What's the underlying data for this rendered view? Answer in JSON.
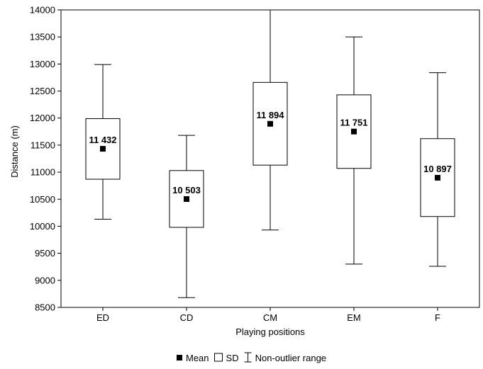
{
  "chart_data": {
    "type": "boxplot",
    "title": "",
    "xlabel": "Playing positions",
    "ylabel": "Distance (m)",
    "ylim": [
      8500,
      14000
    ],
    "y_ticks": [
      8500,
      9000,
      9500,
      10000,
      10500,
      11000,
      11500,
      12000,
      12500,
      13000,
      13500,
      14000
    ],
    "y_tick_labels": [
      "8500",
      "9000",
      "9500",
      "10000",
      "10500",
      "11000",
      "11500",
      "12000",
      "12500",
      "13000",
      "13500",
      "14000"
    ],
    "grid": false,
    "legend_position": "bottom",
    "legend": [
      {
        "symbol": "mean-square",
        "label": "Mean"
      },
      {
        "symbol": "box",
        "label": "SD"
      },
      {
        "symbol": "whisker",
        "label": "Non-outlier range"
      }
    ],
    "categories": [
      "ED",
      "CD",
      "CM",
      "EM",
      "F"
    ],
    "groups": [
      {
        "category": "ED",
        "mean": 11432,
        "mean_label": "11 432",
        "sd_low": 10870,
        "sd_high": 11990,
        "min": 10130,
        "max": 12990
      },
      {
        "category": "CD",
        "mean": 10503,
        "mean_label": "10 503",
        "sd_low": 9980,
        "sd_high": 11030,
        "min": 8680,
        "max": 11680
      },
      {
        "category": "CM",
        "mean": 11894,
        "mean_label": "11 894",
        "sd_low": 11130,
        "sd_high": 12660,
        "min": 9930,
        "max": 14000
      },
      {
        "category": "EM",
        "mean": 11751,
        "mean_label": "11 751",
        "sd_low": 11070,
        "sd_high": 12430,
        "min": 9300,
        "max": 13500
      },
      {
        "category": "F",
        "mean": 10897,
        "mean_label": "10 897",
        "sd_low": 10180,
        "sd_high": 11620,
        "min": 9260,
        "max": 12840
      }
    ],
    "colors": {
      "line": "#000000",
      "box_fill": "#ffffff",
      "mean_marker": "#000000"
    }
  }
}
